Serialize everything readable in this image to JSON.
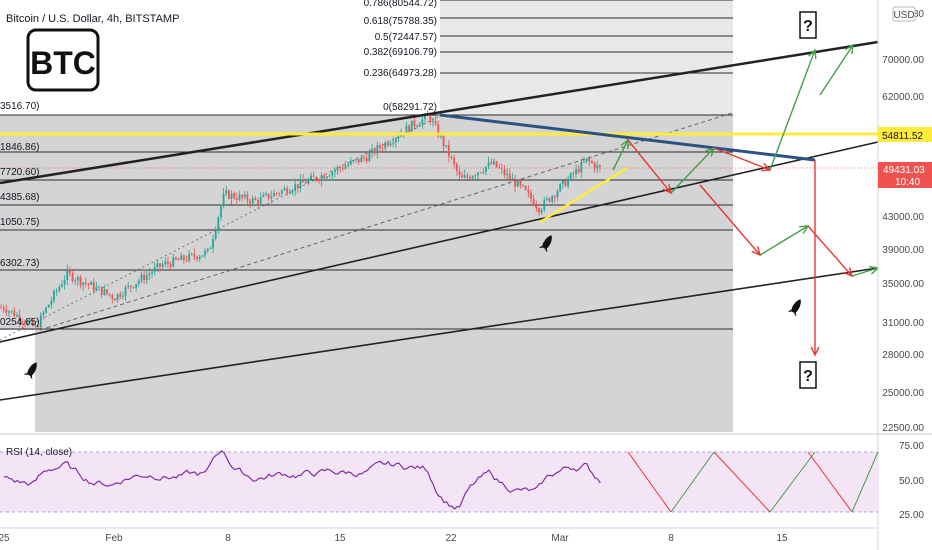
{
  "header": {
    "title": "Bitcoin / U.S. Dollar, 4h, BITSTAMP",
    "currency_badge": "USD",
    "logo_text": "BTC"
  },
  "fib_levels": [
    {
      "ratio": "0.786",
      "price": "80544.72"
    },
    {
      "ratio": "0.618",
      "price": "75788.35"
    },
    {
      "ratio": "0.5",
      "price": "72447.57"
    },
    {
      "ratio": "0.382",
      "price": "69106.79"
    },
    {
      "ratio": "0.236",
      "price": "64973.28"
    },
    {
      "ratio": "0",
      "price": "58291.72"
    }
  ],
  "left_levels": [
    "3516.70)",
    "1846.86)",
    "7720.60)",
    "4385.68)",
    "1050.75)",
    "6302.73)",
    "0254.65)"
  ],
  "price_axis": {
    "ticks": [
      "80",
      "70000.00",
      "62000.00",
      "43000.00",
      "39000.00",
      "35000.00",
      "31000.00",
      "28000.00",
      "25000.00",
      "22500.00"
    ],
    "highlight_label": "54811.52",
    "current_price": "49431.03",
    "countdown": "10:40"
  },
  "time_axis": {
    "ticks": [
      "25",
      "Feb",
      "8",
      "15",
      "22",
      "Mar",
      "8",
      "15"
    ]
  },
  "rsi": {
    "label": "RSI (14, close)",
    "ticks": [
      "75.00",
      "50.00",
      "25.00"
    ]
  },
  "annotations": {
    "question_mark": "?"
  },
  "colors": {
    "up": "#26a69a",
    "down": "#ef5350",
    "yellow_line": "#ffeb3b",
    "blue_line": "#2c5282",
    "green_arrow": "#43a047",
    "red_arrow": "#e53935",
    "rsi_line": "#7b1fa2",
    "rsi_band": "#f3e5f5"
  },
  "chart_data": {
    "type": "candlestick",
    "title": "Bitcoin / U.S. Dollar, 4h, BITSTAMP",
    "x_range": [
      "2021-01-25",
      "2021-03-21"
    ],
    "y_range": [
      22000,
      82000
    ],
    "y_scale": "log",
    "price_path": [
      {
        "x": "2021-01-25",
        "y": 32500
      },
      {
        "x": "2021-01-27",
        "y": 30500
      },
      {
        "x": "2021-01-29",
        "y": 36000
      },
      {
        "x": "2021-02-01",
        "y": 33500
      },
      {
        "x": "2021-02-04",
        "y": 37000
      },
      {
        "x": "2021-02-07",
        "y": 38500
      },
      {
        "x": "2021-02-08",
        "y": 46000
      },
      {
        "x": "2021-02-10",
        "y": 45000
      },
      {
        "x": "2021-02-14",
        "y": 48500
      },
      {
        "x": "2021-02-17",
        "y": 51500
      },
      {
        "x": "2021-02-20",
        "y": 57000
      },
      {
        "x": "2021-02-21",
        "y": 58300
      },
      {
        "x": "2021-02-23",
        "y": 48000
      },
      {
        "x": "2021-02-25",
        "y": 50500
      },
      {
        "x": "2021-02-27",
        "y": 46500
      },
      {
        "x": "2021-02-28",
        "y": 44000
      },
      {
        "x": "2021-03-02",
        "y": 48500
      },
      {
        "x": "2021-03-03",
        "y": 51000
      },
      {
        "x": "2021-03-04",
        "y": 49431
      }
    ],
    "key_level": 54811.52,
    "last_price": 49431.03,
    "rsi": {
      "name": "RSI (14, close)",
      "overbought": 70,
      "oversold": 30,
      "last": 53
    }
  }
}
